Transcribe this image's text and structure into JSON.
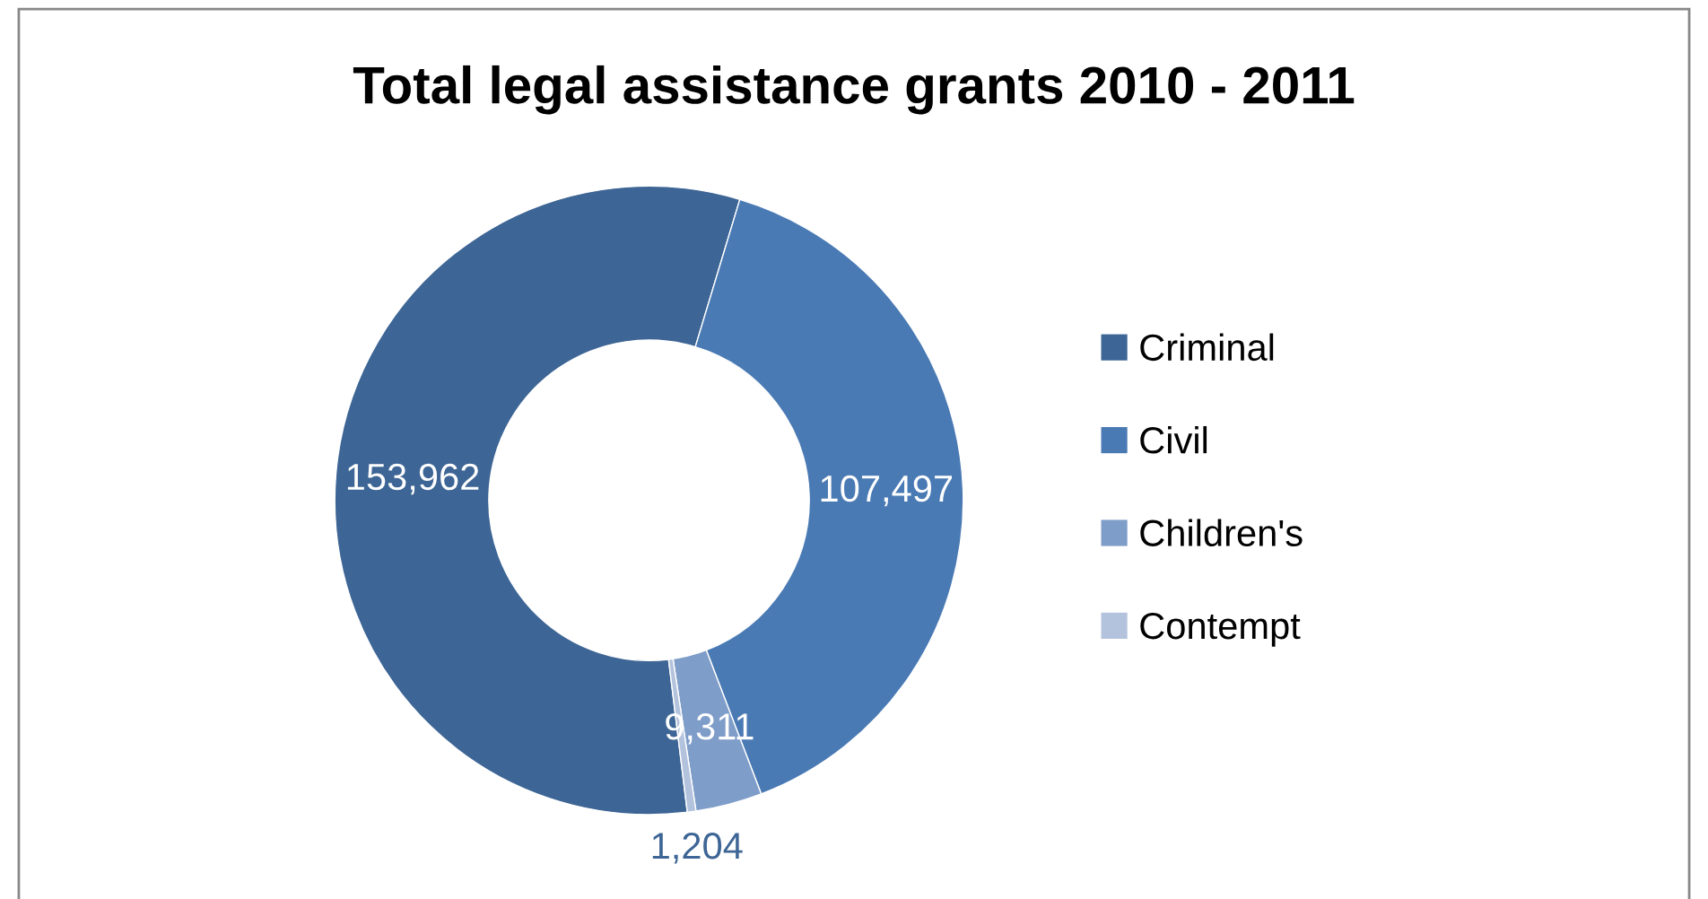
{
  "chart_data": {
    "type": "donut",
    "title": "Total legal assistance grants 2010 - 2011",
    "categories": [
      "Criminal",
      "Civil",
      "Children's",
      "Contempt"
    ],
    "values": [
      153962,
      107497,
      9311,
      1204
    ],
    "colors": [
      "#3d6595",
      "#4a7ab4",
      "#7f9dc9",
      "#b3c3dd"
    ],
    "value_labels": [
      "153,962",
      "107,497",
      "9,311",
      "1,204"
    ],
    "legend": "right"
  }
}
